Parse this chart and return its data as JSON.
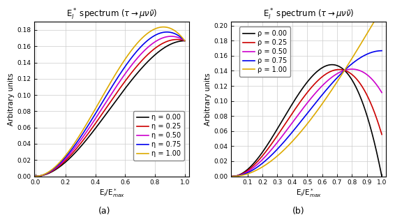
{
  "title": "E$_l^*$ spectrum ($\\tau\\rightarrow\\mu\\nu\\bar{\\nu}$)",
  "xlabel_a": "E$_l$/E$^*_{max}$",
  "xlabel_b": "E$_l$/E$^*_{max}$",
  "ylabel": "Arbitrary units",
  "eta_values": [
    0.0,
    0.25,
    0.5,
    0.75,
    1.0
  ],
  "rho_values": [
    0.0,
    0.25,
    0.5,
    0.75,
    1.0
  ],
  "colors_a": [
    "black",
    "#cc0000",
    "#cc00cc",
    "#0000ee",
    "#ddaa00"
  ],
  "colors_b": [
    "black",
    "#cc0000",
    "#cc00cc",
    "#0000ee",
    "#ddaa00"
  ],
  "eta_labels": [
    "η = 0.00",
    "η = 0.25",
    "η = 0.50",
    "η = 0.75",
    "η = 1.00"
  ],
  "rho_labels": [
    "ρ = 0.00",
    "ρ = 0.25",
    "ρ = 0.50",
    "ρ = 0.75",
    "ρ = 1.00"
  ],
  "ylim_a": [
    0,
    0.19
  ],
  "ylim_b": [
    0,
    0.205
  ],
  "yticks_a": [
    0,
    0.02,
    0.04,
    0.06,
    0.08,
    0.1,
    0.12,
    0.14,
    0.16,
    0.18
  ],
  "yticks_b": [
    0,
    0.02,
    0.04,
    0.06,
    0.08,
    0.1,
    0.12,
    0.14,
    0.16,
    0.18,
    0.2
  ],
  "xticks_a": [
    0,
    0.2,
    0.4,
    0.6,
    0.8,
    1.0
  ],
  "xticks_b": [
    0.1,
    0.2,
    0.3,
    0.4,
    0.5,
    0.6,
    0.7,
    0.8,
    0.9,
    1.0
  ],
  "scale_b": 0.3333333333,
  "background_color": "#ffffff",
  "grid_color": "#cccccc",
  "title_fontsize": 8.5,
  "label_fontsize": 7.5,
  "tick_fontsize": 6.5,
  "legend_fontsize": 7,
  "linewidth": 1.2,
  "caption_fontsize": 9,
  "caption_a": "(a)",
  "caption_b": "(b)"
}
